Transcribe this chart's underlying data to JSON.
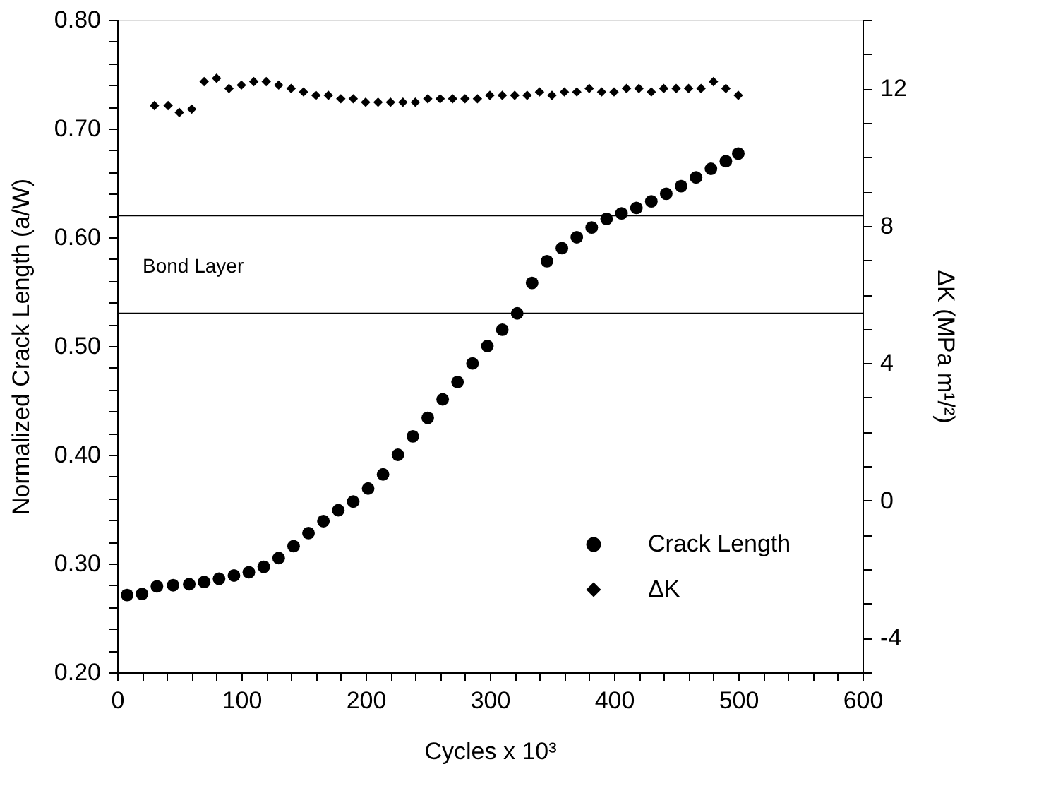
{
  "chart_data": {
    "type": "scatter",
    "xlabel": "Cycles x 10³",
    "ylabel": "Normalized Crack Length (a/W)",
    "y2label": "ΔK (MPa m¹/²)",
    "xlim": [
      0,
      600
    ],
    "ylim": [
      0.2,
      0.8
    ],
    "y2lim": [
      -5,
      14
    ],
    "xticks": [
      0,
      {
        "value": 20,
        "label": null
      },
      {
        "value": 40,
        "label": null
      },
      {
        "value": 60,
        "label": null
      },
      {
        "value": 80,
        "label": null
      },
      100,
      {
        "value": 120,
        "label": null
      },
      {
        "value": 140,
        "label": null
      },
      {
        "value": 160,
        "label": null
      },
      {
        "value": 180,
        "label": null
      },
      200,
      {
        "value": 220,
        "label": null
      },
      {
        "value": 240,
        "label": null
      },
      {
        "value": 260,
        "label": null
      },
      {
        "value": 280,
        "label": null
      },
      300,
      {
        "value": 320,
        "label": null
      },
      {
        "value": 340,
        "label": null
      },
      {
        "value": 360,
        "label": null
      },
      {
        "value": 380,
        "label": null
      },
      400,
      {
        "value": 420,
        "label": null
      },
      {
        "value": 440,
        "label": null
      },
      {
        "value": 460,
        "label": null
      },
      {
        "value": 480,
        "label": null
      },
      500,
      {
        "value": 520,
        "label": null
      },
      {
        "value": 540,
        "label": null
      },
      {
        "value": 560,
        "label": null
      },
      {
        "value": 580,
        "label": null
      },
      600
    ],
    "yticks": [
      {
        "value": 0.2,
        "label": "0.20"
      },
      {
        "value": 0.22,
        "label": null
      },
      {
        "value": 0.24,
        "label": null
      },
      {
        "value": 0.26,
        "label": null
      },
      {
        "value": 0.28,
        "label": null
      },
      {
        "value": 0.3,
        "label": "0.30"
      },
      {
        "value": 0.32,
        "label": null
      },
      {
        "value": 0.34,
        "label": null
      },
      {
        "value": 0.36,
        "label": null
      },
      {
        "value": 0.38,
        "label": null
      },
      {
        "value": 0.4,
        "label": "0.40"
      },
      {
        "value": 0.42,
        "label": null
      },
      {
        "value": 0.44,
        "label": null
      },
      {
        "value": 0.46,
        "label": null
      },
      {
        "value": 0.48,
        "label": null
      },
      {
        "value": 0.5,
        "label": "0.50"
      },
      {
        "value": 0.52,
        "label": null
      },
      {
        "value": 0.54,
        "label": null
      },
      {
        "value": 0.56,
        "label": null
      },
      {
        "value": 0.58,
        "label": null
      },
      {
        "value": 0.6,
        "label": "0.60"
      },
      {
        "value": 0.62,
        "label": null
      },
      {
        "value": 0.64,
        "label": null
      },
      {
        "value": 0.66,
        "label": null
      },
      {
        "value": 0.68,
        "label": null
      },
      {
        "value": 0.7,
        "label": "0.70"
      },
      {
        "value": 0.72,
        "label": null
      },
      {
        "value": 0.74,
        "label": null
      },
      {
        "value": 0.76,
        "label": null
      },
      {
        "value": 0.78,
        "label": null
      },
      {
        "value": 0.8,
        "label": "0.80"
      }
    ],
    "y2ticks": [
      {
        "value": -5,
        "label": null
      },
      -4,
      {
        "value": -3,
        "label": null
      },
      {
        "value": -2,
        "label": null
      },
      {
        "value": -1,
        "label": null
      },
      0,
      {
        "value": 1,
        "label": null
      },
      {
        "value": 2,
        "label": null
      },
      {
        "value": 3,
        "label": null
      },
      4,
      {
        "value": 5,
        "label": null
      },
      {
        "value": 6,
        "label": null
      },
      {
        "value": 7,
        "label": null
      },
      8,
      {
        "value": 9,
        "label": null
      },
      {
        "value": 10,
        "label": null
      },
      {
        "value": 11,
        "label": null
      },
      12,
      {
        "value": 13,
        "label": null
      },
      {
        "value": 14,
        "label": null
      }
    ],
    "grid": false,
    "legend": "bottom right",
    "series": [
      {
        "name": "Crack Length",
        "color": "#000000",
        "marker": "circle",
        "x": [
          8,
          20,
          32,
          45,
          58,
          70,
          82,
          94,
          106,
          118,
          130,
          142,
          154,
          166,
          178,
          190,
          202,
          214,
          226,
          238,
          250,
          262,
          274,
          286,
          298,
          310,
          322,
          334,
          346,
          358,
          370,
          382,
          394,
          406,
          418,
          430,
          442,
          454,
          466,
          478,
          490,
          500
        ],
        "values": [
          0.271,
          0.272,
          0.279,
          0.28,
          0.281,
          0.283,
          0.286,
          0.289,
          0.292,
          0.297,
          0.305,
          0.316,
          0.328,
          0.339,
          0.349,
          0.357,
          0.369,
          0.382,
          0.4,
          0.417,
          0.434,
          0.451,
          0.467,
          0.484,
          0.5,
          0.515,
          0.53,
          0.558,
          0.578,
          0.59,
          0.6,
          0.609,
          0.617,
          0.622,
          0.627,
          0.633,
          0.64,
          0.647,
          0.655,
          0.663,
          0.67,
          0.677
        ]
      },
      {
        "name": "ΔK",
        "color": "#000000",
        "marker": "diamond",
        "axis": "y2",
        "x": [
          30,
          41,
          50,
          60,
          70,
          80,
          90,
          100,
          110,
          120,
          130,
          140,
          150,
          160,
          170,
          180,
          190,
          200,
          210,
          220,
          230,
          240,
          250,
          260,
          270,
          280,
          290,
          300,
          310,
          320,
          330,
          340,
          350,
          360,
          370,
          380,
          390,
          400,
          410,
          420,
          430,
          440,
          450,
          460,
          470,
          480,
          490,
          500
        ],
        "values": [
          11.5,
          11.5,
          11.3,
          11.4,
          12.2,
          12.3,
          12.0,
          12.1,
          12.2,
          12.2,
          12.1,
          12.0,
          11.9,
          11.8,
          11.8,
          11.7,
          11.7,
          11.6,
          11.6,
          11.6,
          11.6,
          11.6,
          11.7,
          11.7,
          11.7,
          11.7,
          11.7,
          11.8,
          11.8,
          11.8,
          11.8,
          11.9,
          11.8,
          11.9,
          11.9,
          12.0,
          11.9,
          11.9,
          12.0,
          12.0,
          11.9,
          12.0,
          12.0,
          12.0,
          12.0,
          12.2,
          12.0,
          11.8
        ]
      }
    ],
    "ref_lines": [
      {
        "axis": "y",
        "value": 0.62
      },
      {
        "axis": "y",
        "value": 0.53
      }
    ],
    "annotations": [
      "Bond Layer"
    ]
  }
}
